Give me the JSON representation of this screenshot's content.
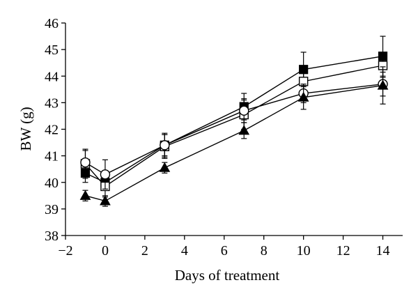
{
  "chart_data": {
    "type": "line",
    "title": "",
    "xlabel": "Days of treatment",
    "ylabel": "BW (g)",
    "xlim": [
      -2,
      15
    ],
    "ylim": [
      38,
      46
    ],
    "xticks": [
      -2,
      0,
      2,
      4,
      6,
      8,
      10,
      12,
      14
    ],
    "yticks": [
      38,
      39,
      40,
      41,
      42,
      43,
      44,
      45,
      46
    ],
    "x": [
      -1,
      0,
      3,
      7,
      10,
      14
    ],
    "legend": "none",
    "grid": false,
    "series": [
      {
        "marker": "filled-square",
        "values": [
          40.35,
          40.0,
          41.4,
          42.85,
          44.25,
          44.75
        ],
        "error": [
          0.35,
          0.3,
          0.45,
          0.5,
          0.65,
          0.75
        ]
      },
      {
        "marker": "open-square",
        "values": [
          40.7,
          39.85,
          41.35,
          42.55,
          43.8,
          44.4
        ],
        "error": [
          0.55,
          0.4,
          0.45,
          0.55,
          0.35,
          0.45
        ]
      },
      {
        "marker": "open-circle",
        "values": [
          40.75,
          40.3,
          41.4,
          42.7,
          43.35,
          43.7
        ],
        "error": [
          0.45,
          0.55,
          0.4,
          0.45,
          0.35,
          0.45
        ]
      },
      {
        "marker": "filled-triangle",
        "values": [
          39.5,
          39.3,
          40.55,
          41.95,
          43.2,
          43.65
        ],
        "error": [
          0.2,
          0.2,
          0.2,
          0.3,
          0.45,
          0.7
        ]
      }
    ],
    "colors": {
      "line": "#000000",
      "fill": "#000000",
      "open_fill": "#ffffff"
    }
  }
}
